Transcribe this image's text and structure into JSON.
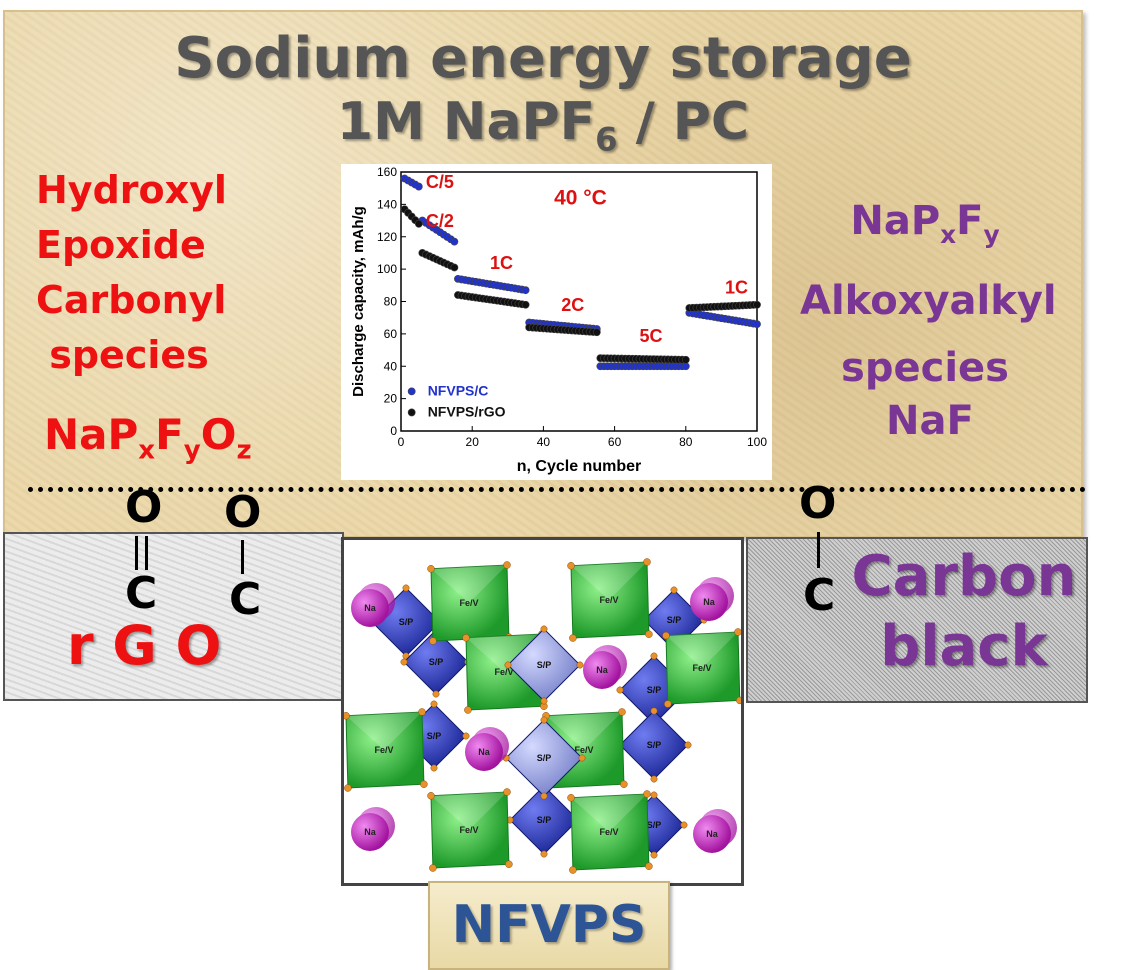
{
  "title": {
    "line1": "Sodium  energy storage",
    "line2_main": "1M NaPF",
    "line2_sub": "6",
    "line2_end": " / PC"
  },
  "left_list": [
    "Hydroxyl",
    "Epoxide",
    "Carbonyl",
    " species"
  ],
  "left_formula": {
    "base": "NaP",
    "s1": "x",
    "f": "F",
    "s2": "y",
    "o": "O",
    "s3": "z"
  },
  "right_list": {
    "formula": {
      "base": "NaP",
      "s1": "x",
      "f": "F",
      "s2": "y"
    },
    "line2": "Alkoxyalkyl",
    "line3": "species",
    "naf": "NaF"
  },
  "rgo_box": {
    "label": "r G O",
    "o1": "O",
    "c1": "C",
    "o2": "O",
    "c2": "C"
  },
  "carbon_black_box": {
    "label_line1": "Carbon",
    "label_line2": "black",
    "o": "O",
    "c": "C"
  },
  "crystal": {
    "na_label": "Na",
    "fev_label": "Fe/V",
    "sp_label": "S/P"
  },
  "bottom_label": "NFVPS",
  "chart_data": {
    "type": "scatter",
    "xlabel": "n, Cycle number",
    "ylabel": "Discharge capacity, mAh/g",
    "xlim": [
      0,
      100
    ],
    "ylim": [
      0,
      160
    ],
    "xticks": [
      "0",
      "20",
      "40",
      "60",
      "80",
      "100"
    ],
    "yticks": [
      "0",
      "20",
      "40",
      "60",
      "80",
      "100",
      "120",
      "140",
      "160"
    ],
    "temperature": "40 °C",
    "rate_labels": [
      {
        "text": "C/5",
        "x": 7,
        "y": 150
      },
      {
        "text": "C/2",
        "x": 7,
        "y": 126
      },
      {
        "text": "1C",
        "x": 25,
        "y": 100
      },
      {
        "text": "2C",
        "x": 45,
        "y": 74
      },
      {
        "text": "5C",
        "x": 67,
        "y": 55
      },
      {
        "text": "1C",
        "x": 91,
        "y": 85
      }
    ],
    "series": [
      {
        "name": "NFVPS/C",
        "color": "#2233cc",
        "segments": [
          {
            "x0": 1,
            "x1": 5,
            "y0": 156,
            "y1": 151
          },
          {
            "x0": 6,
            "x1": 15,
            "y0": 130,
            "y1": 117
          },
          {
            "x0": 16,
            "x1": 35,
            "y0": 94,
            "y1": 87
          },
          {
            "x0": 36,
            "x1": 55,
            "y0": 67,
            "y1": 63
          },
          {
            "x0": 56,
            "x1": 80,
            "y0": 40,
            "y1": 40
          },
          {
            "x0": 81,
            "x1": 100,
            "y0": 73,
            "y1": 66
          }
        ]
      },
      {
        "name": "NFVPS/rGO",
        "color": "#111111",
        "segments": [
          {
            "x0": 1,
            "x1": 5,
            "y0": 137,
            "y1": 128
          },
          {
            "x0": 6,
            "x1": 15,
            "y0": 110,
            "y1": 101
          },
          {
            "x0": 16,
            "x1": 35,
            "y0": 84,
            "y1": 78
          },
          {
            "x0": 36,
            "x1": 55,
            "y0": 64,
            "y1": 61
          },
          {
            "x0": 56,
            "x1": 80,
            "y0": 45,
            "y1": 44
          },
          {
            "x0": 81,
            "x1": 100,
            "y0": 76,
            "y1": 78
          }
        ]
      }
    ]
  }
}
